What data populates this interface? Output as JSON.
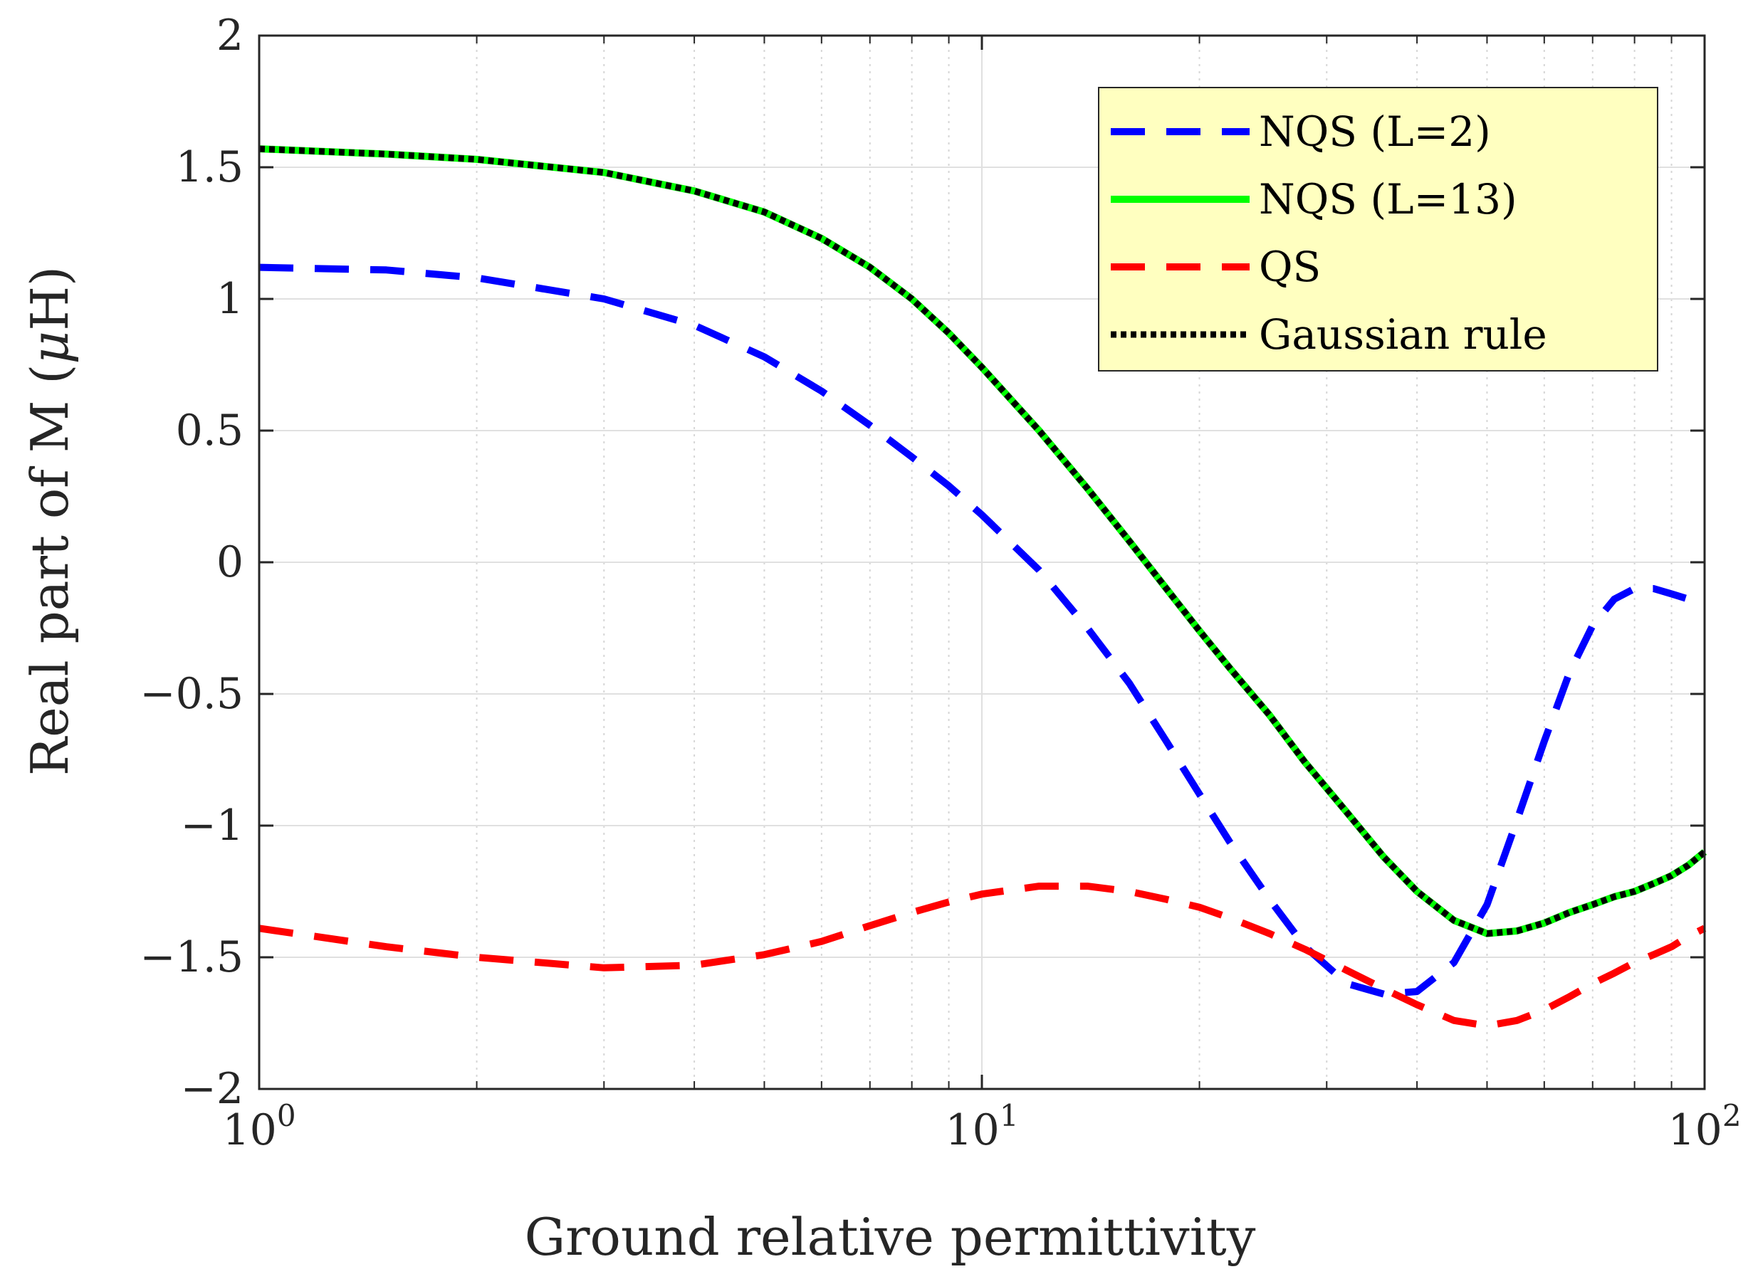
{
  "chart_data": {
    "type": "line",
    "xscale": "log",
    "xlim": [
      1,
      100
    ],
    "ylim": [
      -2,
      2
    ],
    "xlabel": "Ground relative permittivity",
    "ylabel": "Real part of M (",
    "ylabel_symbol": "μ",
    "ylabel_unit": "H)",
    "x_ticks": [
      {
        "value": 1,
        "base": "10",
        "exp": "0"
      },
      {
        "value": 10,
        "base": "10",
        "exp": "1"
      },
      {
        "value": 100,
        "base": "10",
        "exp": "2"
      }
    ],
    "y_ticks": [
      {
        "value": 2,
        "label": "2"
      },
      {
        "value": 1.5,
        "label": "1.5"
      },
      {
        "value": 1,
        "label": "1"
      },
      {
        "value": 0.5,
        "label": "0.5"
      },
      {
        "value": 0,
        "label": "0"
      },
      {
        "value": -0.5,
        "label": "−0.5"
      },
      {
        "value": -1,
        "label": "−1"
      },
      {
        "value": -1.5,
        "label": "−1.5"
      },
      {
        "value": -2,
        "label": "−2"
      }
    ],
    "grid": true,
    "legend_position": "top-right",
    "series": [
      {
        "name": "NQS (L=2)",
        "color": "#0000ff",
        "style": "dashed",
        "x": [
          1,
          1.5,
          2,
          3,
          4,
          5,
          6,
          7,
          8,
          9,
          10,
          12,
          14,
          16,
          18,
          20,
          22,
          25,
          28,
          32,
          36,
          40,
          45,
          50,
          55,
          60,
          65,
          70,
          75,
          80,
          85,
          90,
          95,
          100
        ],
        "y": [
          1.12,
          1.11,
          1.08,
          1.0,
          0.9,
          0.78,
          0.65,
          0.52,
          0.4,
          0.29,
          0.18,
          -0.03,
          -0.25,
          -0.46,
          -0.68,
          -0.88,
          -1.06,
          -1.28,
          -1.46,
          -1.6,
          -1.64,
          -1.63,
          -1.52,
          -1.3,
          -0.98,
          -0.68,
          -0.42,
          -0.24,
          -0.14,
          -0.1,
          -0.1,
          -0.12,
          -0.14,
          -0.16
        ]
      },
      {
        "name": "NQS (L=13)",
        "color": "#00ff00",
        "style": "solid",
        "x": [
          1,
          1.5,
          2,
          3,
          4,
          5,
          6,
          7,
          8,
          9,
          10,
          12,
          14,
          16,
          18,
          20,
          22,
          25,
          28,
          32,
          36,
          40,
          45,
          50,
          55,
          60,
          65,
          70,
          75,
          80,
          85,
          90,
          95,
          100
        ],
        "y": [
          1.57,
          1.55,
          1.53,
          1.48,
          1.41,
          1.33,
          1.23,
          1.12,
          1.0,
          0.87,
          0.74,
          0.5,
          0.28,
          0.08,
          -0.1,
          -0.26,
          -0.4,
          -0.58,
          -0.76,
          -0.95,
          -1.12,
          -1.25,
          -1.36,
          -1.41,
          -1.4,
          -1.37,
          -1.33,
          -1.3,
          -1.27,
          -1.25,
          -1.22,
          -1.19,
          -1.15,
          -1.1
        ]
      },
      {
        "name": "QS",
        "color": "#ff0000",
        "style": "dashed",
        "x": [
          1,
          1.5,
          2,
          3,
          4,
          5,
          6,
          7,
          8,
          9,
          10,
          12,
          14,
          16,
          18,
          20,
          22,
          25,
          28,
          32,
          36,
          40,
          45,
          50,
          55,
          60,
          65,
          70,
          75,
          80,
          85,
          90,
          95,
          100
        ],
        "y": [
          -1.39,
          -1.46,
          -1.5,
          -1.54,
          -1.53,
          -1.49,
          -1.44,
          -1.38,
          -1.33,
          -1.29,
          -1.26,
          -1.23,
          -1.23,
          -1.25,
          -1.28,
          -1.31,
          -1.35,
          -1.41,
          -1.47,
          -1.55,
          -1.62,
          -1.68,
          -1.74,
          -1.76,
          -1.74,
          -1.7,
          -1.65,
          -1.6,
          -1.56,
          -1.52,
          -1.49,
          -1.46,
          -1.42,
          -1.39
        ]
      },
      {
        "name": "Gaussian rule",
        "color": "#000000",
        "style": "dotted",
        "x": [
          1,
          1.5,
          2,
          3,
          4,
          5,
          6,
          7,
          8,
          9,
          10,
          12,
          14,
          16,
          18,
          20,
          22,
          25,
          28,
          32,
          36,
          40,
          45,
          50,
          55,
          60,
          65,
          70,
          75,
          80,
          85,
          90,
          95,
          100
        ],
        "y": [
          1.57,
          1.55,
          1.53,
          1.48,
          1.41,
          1.33,
          1.23,
          1.12,
          1.0,
          0.87,
          0.74,
          0.5,
          0.28,
          0.08,
          -0.1,
          -0.26,
          -0.4,
          -0.58,
          -0.76,
          -0.95,
          -1.12,
          -1.25,
          -1.36,
          -1.41,
          -1.4,
          -1.37,
          -1.33,
          -1.3,
          -1.27,
          -1.25,
          -1.22,
          -1.19,
          -1.15,
          -1.1
        ]
      }
    ]
  },
  "colors": {
    "legend_background": "#ffffc0",
    "grid": "#e0e0e0",
    "axis": "#262626"
  }
}
